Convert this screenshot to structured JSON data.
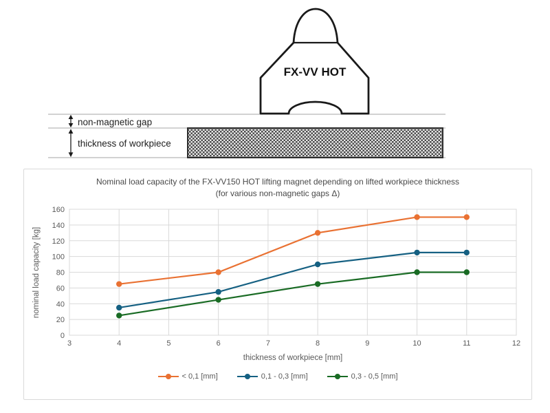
{
  "diagram": {
    "magnet_label": "FX-VV HOT",
    "gap_label": "non-magnetic gap",
    "thickness_label": "thickness of workpiece"
  },
  "chart": {
    "title_line1": "Nominal load capacity of the FX-VV150 HOT lifting magnet depending on lifted workpiece thickness",
    "title_line2": "(for various non-magnetic gaps Δ)"
  },
  "chart_data": {
    "type": "line",
    "title": "Nominal load capacity of the FX-VV150 HOT lifting magnet depending on lifted workpiece thickness (for various non-magnetic gaps Δ)",
    "xlabel": "thickness of workpiece [mm]",
    "ylabel": "nominal load capacity [kg]",
    "xlim": [
      3,
      12
    ],
    "ylim": [
      0,
      160
    ],
    "x_ticks": [
      3,
      4,
      5,
      6,
      7,
      8,
      9,
      10,
      11,
      12
    ],
    "y_ticks": [
      0,
      20,
      40,
      60,
      80,
      100,
      120,
      140,
      160
    ],
    "grid": true,
    "legend_position": "bottom",
    "x": [
      4,
      6,
      8,
      10,
      11
    ],
    "series": [
      {
        "name": "< 0,1 [mm]",
        "color": "#E97132",
        "values": [
          65,
          80,
          130,
          150,
          150
        ]
      },
      {
        "name": "0,1 - 0,3 [mm]",
        "color": "#156082",
        "values": [
          35,
          55,
          90,
          105,
          105
        ]
      },
      {
        "name": "0,3 - 0,5 [mm]",
        "color": "#196B24",
        "values": [
          25,
          45,
          65,
          80,
          80
        ]
      }
    ],
    "styles": {
      "grid_color": "#d9d9d9",
      "axis_text_color": "#595959"
    }
  }
}
